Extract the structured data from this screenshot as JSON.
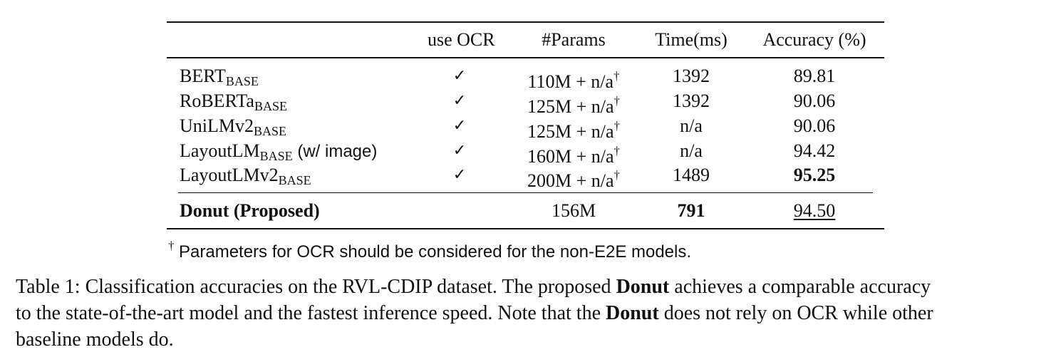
{
  "table": {
    "headers": {
      "ocr": "use OCR",
      "params": "#Params",
      "time": "Time(ms)",
      "accuracy": "Accuracy (%)"
    },
    "rows": [
      {
        "name": "BERT",
        "sub": "BASE",
        "suffix": "",
        "ocr": "✓",
        "params": "110M + n/a",
        "dagger": "†",
        "time": "1392",
        "accuracy": "89.81"
      },
      {
        "name": "RoBERTa",
        "sub": "BASE",
        "suffix": "",
        "ocr": "✓",
        "params": "125M + n/a",
        "dagger": "†",
        "time": "1392",
        "accuracy": "90.06"
      },
      {
        "name": "UniLMv2",
        "sub": "BASE",
        "suffix": "",
        "ocr": "✓",
        "params": "125M + n/a",
        "dagger": "†",
        "time": "n/a",
        "accuracy": "90.06"
      },
      {
        "name": "LayoutLM",
        "sub": "BASE",
        "suffix": " (w/ image)",
        "ocr": "✓",
        "params": "160M + n/a",
        "dagger": "†",
        "time": "n/a",
        "accuracy": "94.42"
      },
      {
        "name": "LayoutLMv2",
        "sub": "BASE",
        "suffix": "",
        "ocr": "✓",
        "params": "200M + n/a",
        "dagger": "†",
        "time": "1489",
        "accuracy": "95.25"
      }
    ],
    "proposed": {
      "name": "Donut (Proposed)",
      "params": "156M",
      "time": "791",
      "accuracy": "94.50"
    }
  },
  "footnote": {
    "dagger": "†",
    "text": "Parameters for OCR should be considered for the non-E2E models."
  },
  "caption": {
    "l1_a": "Table 1: Classification accuracies on the RVL-CDIP dataset. The proposed ",
    "l1_b": "Donut",
    "l1_c": " achieves a comparable accuracy",
    "l2_a": "to the state-of-the-art model and the fastest inference speed. Note that the ",
    "l2_b": "Donut",
    "l2_c": " does not rely on OCR while other",
    "l3": "baseline models do."
  }
}
